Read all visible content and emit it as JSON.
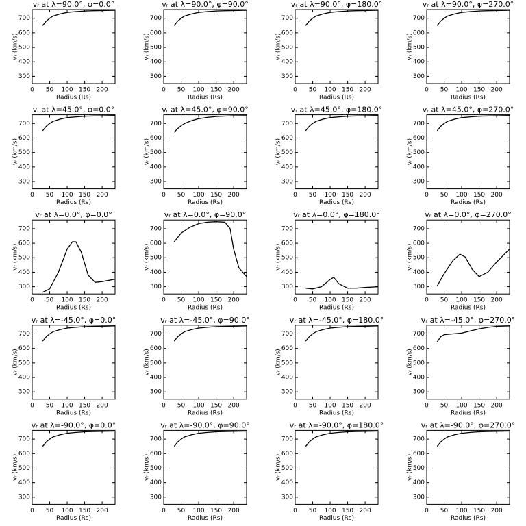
{
  "chart_data": [
    {
      "type": "line",
      "title": "vᵣ at λ=90.0°, φ=0.0°",
      "xlabel": "Radius (Rs)",
      "ylabel": "vᵣ (km/s)",
      "x": [
        30,
        40,
        50,
        60,
        80,
        100,
        125,
        150,
        175,
        200,
        237
      ],
      "values": [
        650,
        680,
        700,
        715,
        730,
        740,
        746,
        750,
        752,
        753,
        755
      ],
      "xlim": [
        0,
        237
      ],
      "ylim": [
        250,
        760
      ],
      "xticks": [
        0,
        50,
        100,
        150,
        200
      ],
      "yticks": [
        300,
        400,
        500,
        600,
        700
      ],
      "color": "#000000"
    },
    {
      "type": "line",
      "title": "vᵣ at λ=90.0°, φ=90.0°",
      "xlabel": "Radius (Rs)",
      "ylabel": "vᵣ (km/s)",
      "x": [
        30,
        40,
        50,
        60,
        80,
        100,
        125,
        150,
        175,
        200,
        237
      ],
      "values": [
        650,
        680,
        700,
        715,
        730,
        740,
        746,
        750,
        752,
        753,
        755
      ],
      "xlim": [
        0,
        237
      ],
      "ylim": [
        250,
        760
      ],
      "xticks": [
        0,
        50,
        100,
        150,
        200
      ],
      "yticks": [
        300,
        400,
        500,
        600,
        700
      ],
      "color": "#000000"
    },
    {
      "type": "line",
      "title": "vᵣ at λ=90.0°, φ=180.0°",
      "xlabel": "Radius (Rs)",
      "ylabel": "vᵣ (km/s)",
      "x": [
        30,
        40,
        50,
        60,
        80,
        100,
        125,
        150,
        175,
        200,
        237
      ],
      "values": [
        650,
        680,
        700,
        715,
        730,
        740,
        746,
        750,
        752,
        753,
        755
      ],
      "xlim": [
        0,
        237
      ],
      "ylim": [
        250,
        760
      ],
      "xticks": [
        0,
        50,
        100,
        150,
        200
      ],
      "yticks": [
        300,
        400,
        500,
        600,
        700
      ],
      "color": "#000000"
    },
    {
      "type": "line",
      "title": "vᵣ at λ=90.0°, φ=270.0°",
      "xlabel": "Radius (Rs)",
      "ylabel": "vᵣ (km/s)",
      "x": [
        30,
        40,
        50,
        60,
        80,
        100,
        125,
        150,
        175,
        200,
        237
      ],
      "values": [
        650,
        680,
        700,
        715,
        730,
        740,
        746,
        750,
        752,
        753,
        755
      ],
      "xlim": [
        0,
        237
      ],
      "ylim": [
        250,
        760
      ],
      "xticks": [
        0,
        50,
        100,
        150,
        200
      ],
      "yticks": [
        300,
        400,
        500,
        600,
        700
      ],
      "color": "#000000"
    },
    {
      "type": "line",
      "title": "vᵣ at λ=45.0°, φ=0.0°",
      "xlabel": "Radius (Rs)",
      "ylabel": "vᵣ (km/s)",
      "x": [
        30,
        40,
        50,
        60,
        80,
        100,
        125,
        150,
        175,
        200,
        237
      ],
      "values": [
        650,
        680,
        700,
        715,
        730,
        740,
        746,
        750,
        752,
        753,
        755
      ],
      "xlim": [
        0,
        237
      ],
      "ylim": [
        250,
        760
      ],
      "xticks": [
        0,
        50,
        100,
        150,
        200
      ],
      "yticks": [
        300,
        400,
        500,
        600,
        700
      ],
      "color": "#000000"
    },
    {
      "type": "line",
      "title": "vᵣ at λ=45.0°, φ=90.0°",
      "xlabel": "Radius (Rs)",
      "ylabel": "vᵣ (km/s)",
      "x": [
        30,
        40,
        50,
        60,
        80,
        100,
        125,
        150,
        175,
        200,
        237
      ],
      "values": [
        640,
        665,
        685,
        700,
        720,
        733,
        742,
        748,
        751,
        753,
        754
      ],
      "xlim": [
        0,
        237
      ],
      "ylim": [
        250,
        760
      ],
      "xticks": [
        0,
        50,
        100,
        150,
        200
      ],
      "yticks": [
        300,
        400,
        500,
        600,
        700
      ],
      "color": "#000000"
    },
    {
      "type": "line",
      "title": "vᵣ at λ=45.0°, φ=180.0°",
      "xlabel": "Radius (Rs)",
      "ylabel": "vᵣ (km/s)",
      "x": [
        30,
        40,
        50,
        60,
        80,
        100,
        125,
        150,
        175,
        200,
        237
      ],
      "values": [
        650,
        680,
        700,
        715,
        730,
        740,
        746,
        750,
        752,
        753,
        755
      ],
      "xlim": [
        0,
        237
      ],
      "ylim": [
        250,
        760
      ],
      "xticks": [
        0,
        50,
        100,
        150,
        200
      ],
      "yticks": [
        300,
        400,
        500,
        600,
        700
      ],
      "color": "#000000"
    },
    {
      "type": "line",
      "title": "vᵣ at λ=45.0°, φ=270.0°",
      "xlabel": "Radius (Rs)",
      "ylabel": "vᵣ (km/s)",
      "x": [
        30,
        40,
        50,
        60,
        80,
        100,
        125,
        150,
        175,
        200,
        237
      ],
      "values": [
        650,
        680,
        700,
        715,
        730,
        740,
        746,
        750,
        752,
        753,
        755
      ],
      "xlim": [
        0,
        237
      ],
      "ylim": [
        250,
        760
      ],
      "xticks": [
        0,
        50,
        100,
        150,
        200
      ],
      "yticks": [
        300,
        400,
        500,
        600,
        700
      ],
      "color": "#000000"
    },
    {
      "type": "line",
      "title": "vᵣ at λ=0.0°, φ=0.0°",
      "xlabel": "Radius (Rs)",
      "ylabel": "vᵣ (km/s)",
      "x": [
        30,
        50,
        75,
        100,
        115,
        125,
        140,
        160,
        180,
        200,
        237
      ],
      "values": [
        262,
        285,
        400,
        560,
        610,
        610,
        540,
        380,
        330,
        335,
        352
      ],
      "xlim": [
        0,
        237
      ],
      "ylim": [
        250,
        760
      ],
      "xticks": [
        0,
        50,
        100,
        150,
        200
      ],
      "yticks": [
        300,
        400,
        500,
        600,
        700
      ],
      "color": "#000000"
    },
    {
      "type": "line",
      "title": "vᵣ at λ=0.0°, φ=90.0°",
      "xlabel": "Radius (Rs)",
      "ylabel": "vᵣ (km/s)",
      "x": [
        30,
        50,
        75,
        100,
        125,
        150,
        175,
        190,
        200,
        215,
        237
      ],
      "values": [
        610,
        670,
        710,
        735,
        745,
        748,
        745,
        700,
        560,
        430,
        370
      ],
      "xlim": [
        0,
        237
      ],
      "ylim": [
        250,
        760
      ],
      "xticks": [
        0,
        50,
        100,
        150,
        200
      ],
      "yticks": [
        300,
        400,
        500,
        600,
        700
      ],
      "color": "#000000"
    },
    {
      "type": "line",
      "title": "vᵣ at λ=0.0°, φ=180.0°",
      "xlabel": "Radius (Rs)",
      "ylabel": "vᵣ (km/s)",
      "x": [
        30,
        50,
        75,
        100,
        110,
        125,
        150,
        175,
        200,
        237
      ],
      "values": [
        290,
        285,
        300,
        350,
        365,
        320,
        290,
        290,
        295,
        300
      ],
      "xlim": [
        0,
        237
      ],
      "ylim": [
        250,
        760
      ],
      "xticks": [
        0,
        50,
        100,
        150,
        200
      ],
      "yticks": [
        300,
        400,
        500,
        600,
        700
      ],
      "color": "#000000"
    },
    {
      "type": "line",
      "title": "vᵣ at λ=0.0°, φ=270.0°",
      "xlabel": "Radius (Rs)",
      "ylabel": "vᵣ (km/s)",
      "x": [
        30,
        50,
        75,
        95,
        110,
        130,
        150,
        175,
        200,
        237
      ],
      "values": [
        305,
        390,
        480,
        525,
        505,
        420,
        370,
        400,
        470,
        560
      ],
      "xlim": [
        0,
        237
      ],
      "ylim": [
        250,
        760
      ],
      "xticks": [
        0,
        50,
        100,
        150,
        200
      ],
      "yticks": [
        300,
        400,
        500,
        600,
        700
      ],
      "color": "#000000"
    },
    {
      "type": "line",
      "title": "vᵣ at λ=-45.0°, φ=0.0°",
      "xlabel": "Radius (Rs)",
      "ylabel": "vᵣ (km/s)",
      "x": [
        30,
        40,
        50,
        60,
        80,
        100,
        125,
        150,
        175,
        200,
        237
      ],
      "values": [
        650,
        680,
        700,
        715,
        730,
        740,
        746,
        750,
        752,
        753,
        755
      ],
      "xlim": [
        0,
        237
      ],
      "ylim": [
        250,
        760
      ],
      "xticks": [
        0,
        50,
        100,
        150,
        200
      ],
      "yticks": [
        300,
        400,
        500,
        600,
        700
      ],
      "color": "#000000"
    },
    {
      "type": "line",
      "title": "vᵣ at λ=-45.0°, φ=90.0°",
      "xlabel": "Radius (Rs)",
      "ylabel": "vᵣ (km/s)",
      "x": [
        30,
        40,
        50,
        60,
        80,
        100,
        125,
        150,
        175,
        200,
        237
      ],
      "values": [
        650,
        680,
        700,
        715,
        730,
        740,
        746,
        750,
        752,
        753,
        755
      ],
      "xlim": [
        0,
        237
      ],
      "ylim": [
        250,
        760
      ],
      "xticks": [
        0,
        50,
        100,
        150,
        200
      ],
      "yticks": [
        300,
        400,
        500,
        600,
        700
      ],
      "color": "#000000"
    },
    {
      "type": "line",
      "title": "vᵣ at λ=-45.0°, φ=180.0°",
      "xlabel": "Radius (Rs)",
      "ylabel": "vᵣ (km/s)",
      "x": [
        30,
        40,
        50,
        60,
        80,
        100,
        125,
        150,
        175,
        200,
        237
      ],
      "values": [
        650,
        680,
        700,
        715,
        730,
        740,
        746,
        750,
        752,
        753,
        755
      ],
      "xlim": [
        0,
        237
      ],
      "ylim": [
        250,
        760
      ],
      "xticks": [
        0,
        50,
        100,
        150,
        200
      ],
      "yticks": [
        300,
        400,
        500,
        600,
        700
      ],
      "color": "#000000"
    },
    {
      "type": "line",
      "title": "vᵣ at λ=-45.0°, φ=270.0°",
      "xlabel": "Radius (Rs)",
      "ylabel": "vᵣ (km/s)",
      "x": [
        30,
        40,
        50,
        75,
        100,
        125,
        150,
        175,
        200,
        237
      ],
      "values": [
        645,
        680,
        695,
        700,
        705,
        720,
        735,
        745,
        752,
        755
      ],
      "xlim": [
        0,
        237
      ],
      "ylim": [
        250,
        760
      ],
      "xticks": [
        0,
        50,
        100,
        150,
        200
      ],
      "yticks": [
        300,
        400,
        500,
        600,
        700
      ],
      "color": "#000000"
    },
    {
      "type": "line",
      "title": "vᵣ at λ=-90.0°, φ=0.0°",
      "xlabel": "Radius (Rs)",
      "ylabel": "vᵣ (km/s)",
      "x": [
        30,
        40,
        50,
        60,
        80,
        100,
        125,
        150,
        175,
        200,
        237
      ],
      "values": [
        650,
        680,
        700,
        715,
        730,
        740,
        746,
        750,
        752,
        753,
        755
      ],
      "xlim": [
        0,
        237
      ],
      "ylim": [
        250,
        760
      ],
      "xticks": [
        0,
        50,
        100,
        150,
        200
      ],
      "yticks": [
        300,
        400,
        500,
        600,
        700
      ],
      "color": "#000000"
    },
    {
      "type": "line",
      "title": "vᵣ at λ=-90.0°, φ=90.0°",
      "xlabel": "Radius (Rs)",
      "ylabel": "vᵣ (km/s)",
      "x": [
        30,
        40,
        50,
        60,
        80,
        100,
        125,
        150,
        175,
        200,
        237
      ],
      "values": [
        650,
        680,
        700,
        715,
        730,
        740,
        746,
        750,
        752,
        753,
        755
      ],
      "xlim": [
        0,
        237
      ],
      "ylim": [
        250,
        760
      ],
      "xticks": [
        0,
        50,
        100,
        150,
        200
      ],
      "yticks": [
        300,
        400,
        500,
        600,
        700
      ],
      "color": "#000000"
    },
    {
      "type": "line",
      "title": "vᵣ at λ=-90.0°, φ=180.0°",
      "xlabel": "Radius (Rs)",
      "ylabel": "vᵣ (km/s)",
      "x": [
        30,
        40,
        50,
        60,
        80,
        100,
        125,
        150,
        175,
        200,
        237
      ],
      "values": [
        650,
        680,
        700,
        715,
        730,
        740,
        746,
        750,
        752,
        753,
        755
      ],
      "xlim": [
        0,
        237
      ],
      "ylim": [
        250,
        760
      ],
      "xticks": [
        0,
        50,
        100,
        150,
        200
      ],
      "yticks": [
        300,
        400,
        500,
        600,
        700
      ],
      "color": "#000000"
    },
    {
      "type": "line",
      "title": "vᵣ at λ=-90.0°, φ=270.0°",
      "xlabel": "Radius (Rs)",
      "ylabel": "vᵣ (km/s)",
      "x": [
        30,
        40,
        50,
        60,
        80,
        100,
        125,
        150,
        175,
        200,
        237
      ],
      "values": [
        650,
        680,
        700,
        715,
        730,
        740,
        746,
        750,
        752,
        753,
        755
      ],
      "xlim": [
        0,
        237
      ],
      "ylim": [
        250,
        760
      ],
      "xticks": [
        0,
        50,
        100,
        150,
        200
      ],
      "yticks": [
        300,
        400,
        500,
        600,
        700
      ],
      "color": "#000000"
    }
  ]
}
